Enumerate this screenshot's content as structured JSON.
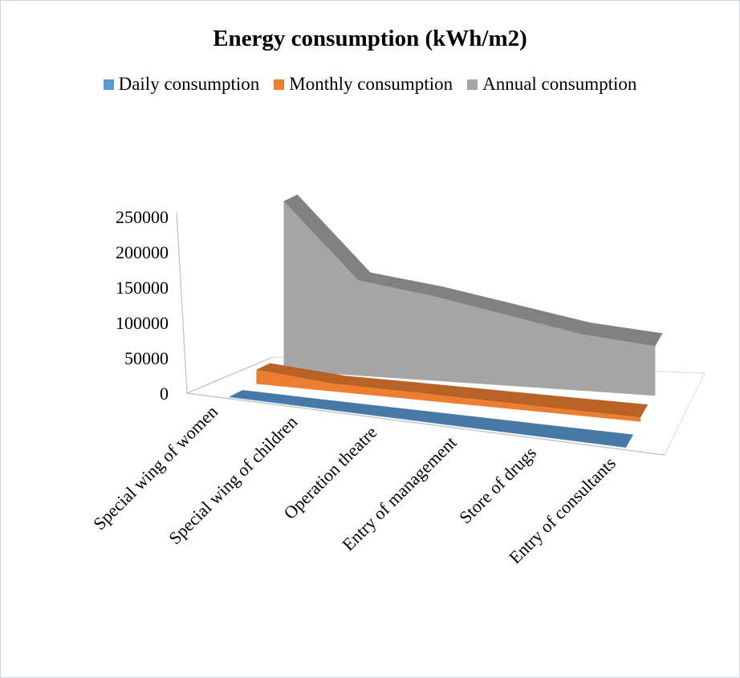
{
  "chart_data": {
    "type": "area",
    "title": "Energy consumption (kWh/m2)",
    "categories": [
      "Special wing of women",
      "Special wing of children",
      "Operation theatre",
      "Entry of management",
      "Store of drugs",
      "Entry of consultants"
    ],
    "series": [
      {
        "name": "Daily consumption",
        "color": "#5b9bd5",
        "values": [
          700,
          400,
          350,
          300,
          250,
          220
        ]
      },
      {
        "name": "Monthly consumption",
        "color": "#ed7d31",
        "values": [
          20000,
          11000,
          10000,
          8500,
          7000,
          6000
        ]
      },
      {
        "name": "Annual consumption",
        "color": "#a5a5a5",
        "values": [
          240000,
          135000,
          120000,
          100000,
          80000,
          70000
        ]
      }
    ],
    "y_ticks": [
      "0",
      "50000",
      "100000",
      "150000",
      "200000",
      "250000"
    ],
    "ylim": [
      0,
      250000
    ],
    "legend_position": "top",
    "grid": false,
    "view": "3d-area"
  }
}
